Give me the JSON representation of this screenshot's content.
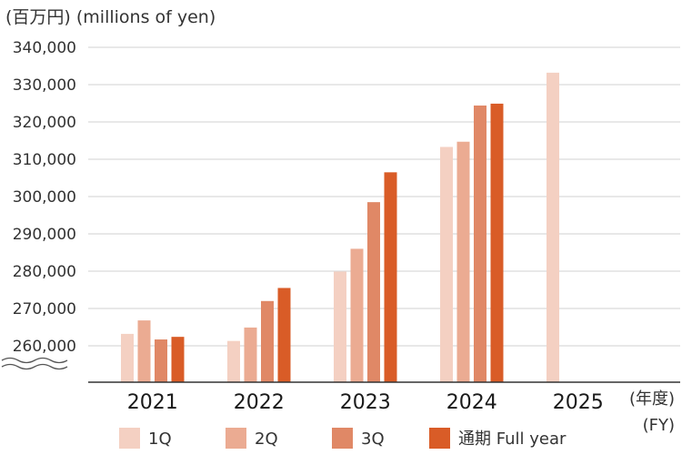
{
  "header": {
    "unit_label": "(百万円) (millions of yen)"
  },
  "chart_data": {
    "type": "bar",
    "categories": [
      "2021",
      "2022",
      "2023",
      "2024",
      "2025"
    ],
    "series": [
      {
        "name": "1Q",
        "color": "#f4d0c2",
        "values": [
          263200,
          261300,
          279900,
          313300,
          333200
        ]
      },
      {
        "name": "2Q",
        "color": "#ebab92",
        "values": [
          266800,
          264900,
          286000,
          314700,
          null
        ]
      },
      {
        "name": "3Q",
        "color": "#e08866",
        "values": [
          261700,
          272000,
          298500,
          324400,
          null
        ]
      },
      {
        "name": "通期  Full year",
        "color": "#d95c27",
        "values": [
          262400,
          275500,
          306500,
          324900,
          null
        ]
      }
    ],
    "y_ticks": [
      "260,000",
      "270,000",
      "280,000",
      "290,000",
      "300,000",
      "310,000",
      "320,000",
      "330,000",
      "340,000"
    ],
    "ylim": [
      255000,
      340000
    ],
    "axis_break": true,
    "grid": true,
    "x_unit_label": {
      "line1": "(年度)",
      "line2": "(FY)"
    },
    "legend_position": "bottom"
  }
}
